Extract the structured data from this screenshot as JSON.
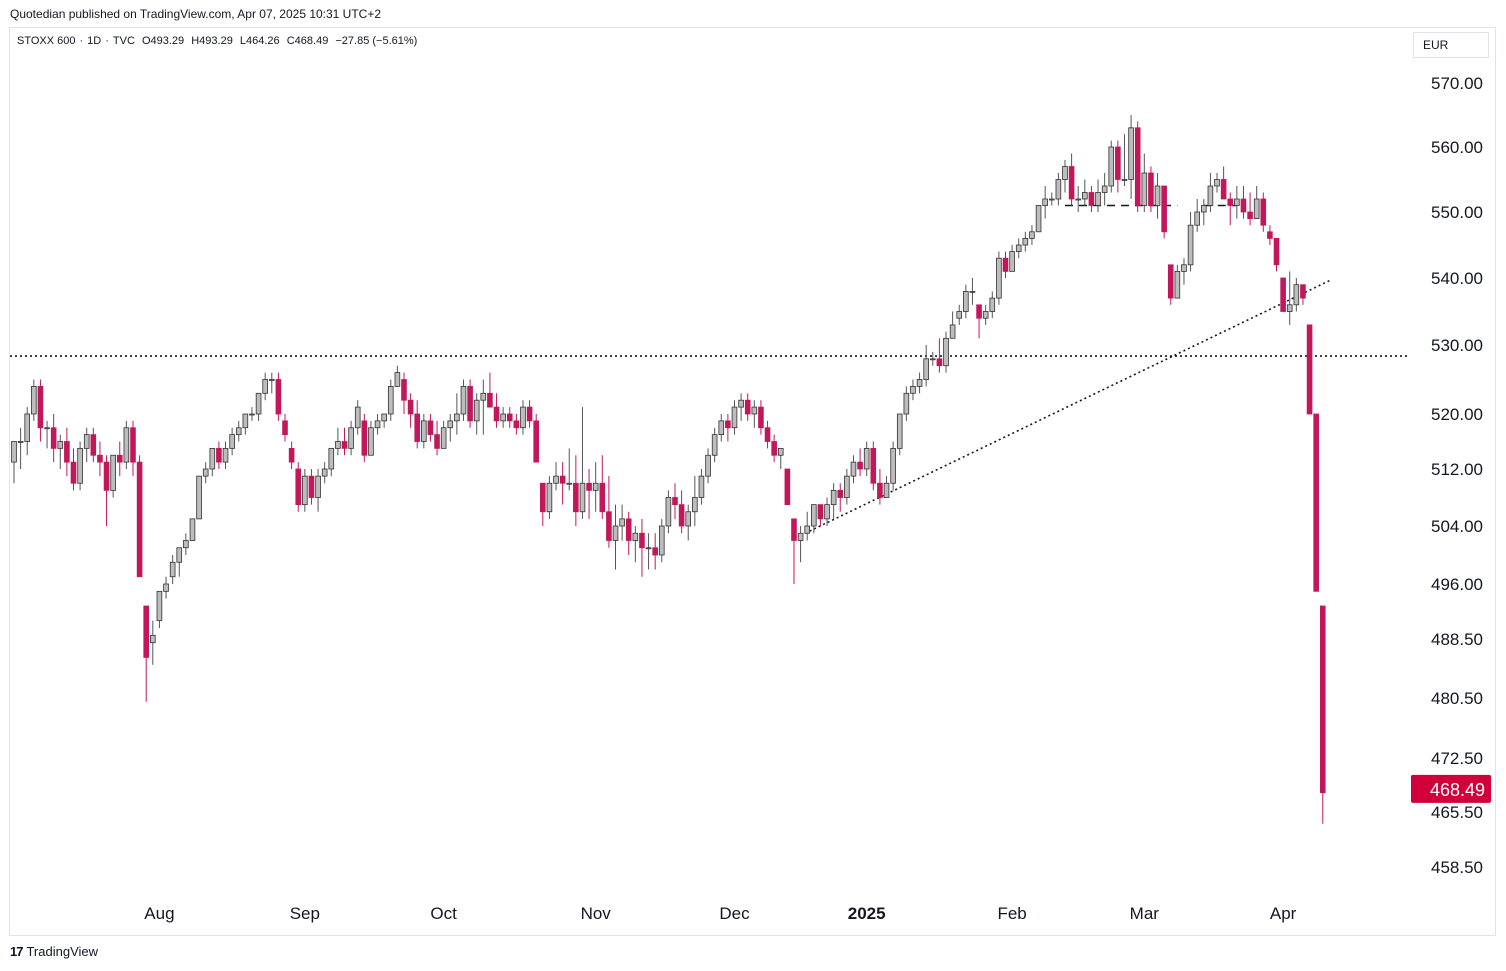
{
  "header": {
    "publisher_text": "Quotedian published on TradingView.com, Apr 07, 2025 10:31 UTC+2"
  },
  "symbol": {
    "name": "STOXX 600",
    "interval": "1D",
    "source": "TVC",
    "open": "O493.29",
    "high": "H493.29",
    "low": "L464.26",
    "close": "C468.49",
    "change": "−27.85 (−5.61%)"
  },
  "currency": "EUR",
  "footer": {
    "brand": "TradingView",
    "logo_glyph": "17"
  },
  "colors": {
    "up": "#9e9e9e",
    "down": "#c2185b",
    "wick": "#c2185b",
    "last_price_bg": "#d1003a"
  },
  "chart_data": {
    "type": "candlestick",
    "last_price": "468.49",
    "y_ticks": [
      "570.00",
      "560.00",
      "550.00",
      "540.00",
      "530.00",
      "520.00",
      "512.00",
      "504.00",
      "496.00",
      "488.50",
      "480.50",
      "472.50",
      "465.50",
      "458.50"
    ],
    "x_ticks": [
      {
        "label": "Aug",
        "bar": 22,
        "bold": false
      },
      {
        "label": "Sep",
        "bar": 44,
        "bold": false
      },
      {
        "label": "Oct",
        "bar": 65,
        "bold": false
      },
      {
        "label": "Nov",
        "bar": 88,
        "bold": false
      },
      {
        "label": "Dec",
        "bar": 109,
        "bold": false
      },
      {
        "label": "2025",
        "bar": 129,
        "bold": true
      },
      {
        "label": "Feb",
        "bar": 151,
        "bold": false
      },
      {
        "label": "Mar",
        "bar": 171,
        "bold": false
      },
      {
        "label": "Apr",
        "bar": 192,
        "bold": false
      }
    ],
    "candles": [
      [
        513,
        516,
        510,
        516
      ],
      [
        516,
        518,
        512,
        516
      ],
      [
        516,
        521,
        514,
        520
      ],
      [
        520,
        525,
        519,
        524
      ],
      [
        524,
        525,
        516,
        518
      ],
      [
        518,
        519,
        515,
        518
      ],
      [
        518,
        520,
        513,
        515
      ],
      [
        515,
        517,
        512,
        516
      ],
      [
        516,
        518,
        511,
        513
      ],
      [
        513,
        515,
        509,
        510
      ],
      [
        510,
        516,
        509,
        515
      ],
      [
        515,
        518,
        513,
        517
      ],
      [
        517,
        518,
        513,
        514
      ],
      [
        514,
        516,
        511,
        513
      ],
      [
        513,
        514,
        504,
        509
      ],
      [
        509,
        514,
        508,
        514
      ],
      [
        514,
        516,
        511,
        513
      ],
      [
        513,
        519,
        512,
        518
      ],
      [
        518,
        519,
        511,
        513
      ],
      [
        513,
        514,
        497,
        497
      ],
      [
        493,
        493,
        480,
        486
      ],
      [
        488,
        491,
        485,
        489
      ],
      [
        491,
        495,
        490,
        495
      ],
      [
        495,
        497,
        494,
        496
      ],
      [
        497,
        500,
        496,
        499
      ],
      [
        499,
        501,
        497,
        501
      ],
      [
        501,
        503,
        500,
        502
      ],
      [
        502,
        505,
        502,
        505
      ],
      [
        505,
        511,
        505,
        511
      ],
      [
        511,
        513,
        510,
        512
      ],
      [
        512,
        515,
        511,
        515
      ],
      [
        515,
        516,
        512,
        513
      ],
      [
        513,
        516,
        512,
        515
      ],
      [
        515,
        518,
        514,
        517
      ],
      [
        517,
        519,
        516,
        518
      ],
      [
        518,
        520,
        517,
        520
      ],
      [
        520,
        521,
        519,
        520
      ],
      [
        520,
        523,
        519,
        523
      ],
      [
        523,
        526,
        522,
        525
      ],
      [
        525,
        526,
        523,
        525
      ],
      [
        525,
        526,
        519,
        520
      ],
      [
        519,
        520,
        516,
        517
      ],
      [
        515,
        516,
        512,
        513
      ],
      [
        512,
        513,
        506,
        507
      ],
      [
        507,
        512,
        506,
        511
      ],
      [
        511,
        512,
        507,
        508
      ],
      [
        508,
        512,
        506,
        511
      ],
      [
        511,
        513,
        510,
        512
      ],
      [
        512,
        515,
        511,
        515
      ],
      [
        515,
        518,
        514,
        516
      ],
      [
        516,
        518,
        514,
        515
      ],
      [
        515,
        519,
        514,
        518
      ],
      [
        518,
        522,
        517,
        521
      ],
      [
        519,
        520,
        513,
        514
      ],
      [
        514,
        519,
        514,
        518
      ],
      [
        518,
        520,
        517,
        519
      ],
      [
        519,
        520,
        518,
        520
      ],
      [
        520,
        525,
        519,
        524
      ],
      [
        524,
        527,
        524,
        526
      ],
      [
        525,
        526,
        520,
        522
      ],
      [
        522,
        523,
        518,
        520
      ],
      [
        520,
        522,
        515,
        516
      ],
      [
        516,
        520,
        515,
        519
      ],
      [
        519,
        520,
        516,
        517
      ],
      [
        517,
        519,
        514,
        515
      ],
      [
        515,
        519,
        515,
        518
      ],
      [
        518,
        520,
        516,
        519
      ],
      [
        519,
        523,
        517,
        520
      ],
      [
        520,
        525,
        519,
        524
      ],
      [
        524,
        525,
        518,
        519
      ],
      [
        519,
        523,
        517,
        522
      ],
      [
        522,
        525,
        517,
        523
      ],
      [
        523,
        526,
        521,
        521
      ],
      [
        521,
        523,
        518,
        519
      ],
      [
        519,
        521,
        518,
        520
      ],
      [
        520,
        521,
        518,
        519
      ],
      [
        519,
        520,
        517,
        518
      ],
      [
        518,
        522,
        517,
        521
      ],
      [
        521,
        522,
        518,
        519
      ],
      [
        519,
        520,
        513,
        513
      ],
      [
        510,
        510,
        504,
        506
      ],
      [
        506,
        511,
        505,
        510
      ],
      [
        510,
        513,
        509,
        511
      ],
      [
        511,
        513,
        507,
        510
      ],
      [
        510,
        515,
        509,
        510
      ],
      [
        510,
        514,
        504,
        506
      ],
      [
        506,
        521,
        505,
        510
      ],
      [
        510,
        512,
        505,
        509
      ],
      [
        509,
        513,
        506,
        510
      ],
      [
        510,
        514,
        505,
        506
      ],
      [
        506,
        511,
        501,
        502
      ],
      [
        502,
        507,
        498,
        504
      ],
      [
        504,
        507,
        502,
        505
      ],
      [
        505,
        506,
        500,
        502
      ],
      [
        502,
        504,
        499,
        503
      ],
      [
        503,
        505,
        497,
        501
      ],
      [
        501,
        503,
        498,
        501
      ],
      [
        501,
        503,
        498,
        500
      ],
      [
        500,
        505,
        499,
        504
      ],
      [
        504,
        509,
        503,
        508
      ],
      [
        508,
        510,
        505,
        507
      ],
      [
        507,
        509,
        503,
        504
      ],
      [
        504,
        507,
        502,
        506
      ],
      [
        506,
        511,
        504,
        508
      ],
      [
        508,
        512,
        507,
        511
      ],
      [
        511,
        515,
        510,
        514
      ],
      [
        514,
        518,
        513,
        517
      ],
      [
        517,
        520,
        516,
        519
      ],
      [
        519,
        520,
        516,
        518
      ],
      [
        518,
        522,
        517,
        521
      ],
      [
        521,
        523,
        519,
        522
      ],
      [
        522,
        523,
        519,
        520
      ],
      [
        520,
        522,
        518,
        521
      ],
      [
        521,
        522,
        517,
        518
      ],
      [
        518,
        519,
        515,
        516
      ],
      [
        516,
        517,
        513,
        514
      ],
      [
        514,
        515,
        512,
        515
      ],
      [
        512,
        512,
        507,
        507
      ],
      [
        505,
        505,
        496,
        502
      ],
      [
        502,
        504,
        499,
        503
      ],
      [
        503,
        506,
        502,
        504
      ],
      [
        504,
        507,
        503,
        507
      ],
      [
        507,
        507,
        504,
        505
      ],
      [
        505,
        508,
        504,
        507
      ],
      [
        507,
        510,
        505,
        509
      ],
      [
        509,
        510,
        506,
        508
      ],
      [
        508,
        512,
        507,
        511
      ],
      [
        511,
        514,
        510,
        513
      ],
      [
        513,
        515,
        511,
        512
      ],
      [
        512,
        516,
        511,
        515
      ],
      [
        515,
        516,
        509,
        510
      ],
      [
        510,
        512,
        507,
        508
      ],
      [
        508,
        511,
        508,
        510
      ],
      [
        510,
        516,
        509,
        515
      ],
      [
        515,
        520,
        514,
        520
      ],
      [
        520,
        524,
        519,
        523
      ],
      [
        523,
        525,
        522,
        524
      ],
      [
        524,
        526,
        523,
        525
      ],
      [
        525,
        530,
        524,
        528
      ],
      [
        528,
        529,
        527,
        528
      ],
      [
        528,
        531,
        526,
        527
      ],
      [
        527,
        532,
        526,
        531
      ],
      [
        531,
        535,
        531,
        533
      ],
      [
        534,
        536,
        533,
        535
      ],
      [
        535,
        539,
        534,
        538
      ],
      [
        538,
        540,
        536,
        538
      ],
      [
        536,
        536,
        531,
        534
      ],
      [
        534,
        536,
        533,
        535
      ],
      [
        535,
        538,
        534,
        537
      ],
      [
        537,
        544,
        536,
        543
      ],
      [
        543,
        544,
        540,
        541
      ],
      [
        541,
        545,
        541,
        544
      ],
      [
        544,
        546,
        543,
        545
      ],
      [
        545,
        547,
        544,
        546
      ],
      [
        546,
        548,
        545,
        547
      ],
      [
        547,
        551,
        547,
        551
      ],
      [
        551,
        554,
        549,
        552
      ],
      [
        552,
        553,
        551,
        552
      ],
      [
        552,
        556,
        551,
        555
      ],
      [
        555,
        558,
        553,
        557
      ],
      [
        557,
        559,
        551,
        552
      ],
      [
        552,
        554,
        550,
        552
      ],
      [
        552,
        555,
        551,
        553
      ],
      [
        553,
        554,
        550,
        551
      ],
      [
        551,
        555,
        550,
        553
      ],
      [
        553,
        556,
        551,
        554
      ],
      [
        554,
        561,
        553,
        560
      ],
      [
        560,
        561,
        553,
        555
      ],
      [
        555,
        562,
        554,
        555
      ],
      [
        555,
        565,
        552,
        563
      ],
      [
        563,
        564,
        550,
        551
      ],
      [
        551,
        559,
        550,
        556
      ],
      [
        556,
        557,
        550,
        551
      ],
      [
        551,
        556,
        549,
        554
      ],
      [
        554,
        554,
        546,
        547
      ],
      [
        542,
        542,
        536,
        537
      ],
      [
        537,
        542,
        537,
        541
      ],
      [
        541,
        543,
        539,
        542
      ],
      [
        542,
        550,
        541,
        548
      ],
      [
        548,
        552,
        547,
        550
      ],
      [
        550,
        552,
        548,
        551
      ],
      [
        551,
        556,
        550,
        554
      ],
      [
        554,
        556,
        553,
        555
      ],
      [
        555,
        557,
        552,
        552
      ],
      [
        552,
        553,
        548,
        551
      ],
      [
        551,
        554,
        549,
        552
      ],
      [
        552,
        554,
        549,
        550
      ],
      [
        550,
        553,
        548,
        549
      ],
      [
        549,
        554,
        549,
        552
      ],
      [
        552,
        553,
        547,
        548
      ],
      [
        547,
        548,
        545,
        546
      ],
      [
        546,
        546,
        541,
        542
      ],
      [
        540,
        540,
        536,
        535
      ],
      [
        535,
        541,
        533,
        536
      ],
      [
        536,
        540,
        535,
        539
      ],
      [
        539,
        539,
        536,
        537
      ],
      [
        533,
        533,
        520,
        520
      ],
      [
        520,
        520,
        495,
        495
      ],
      [
        493,
        493,
        464,
        468
      ]
    ],
    "reference_lines": [
      {
        "type": "horizontal",
        "style": "dotted",
        "value": 528.4
      },
      {
        "type": "segment",
        "style": "dashed",
        "from_bar": 159,
        "to_bar": 176,
        "value": 551
      },
      {
        "type": "segment",
        "style": "dashed",
        "from_bar": 180,
        "to_bar": 185,
        "value": 551
      },
      {
        "type": "trend",
        "style": "dotted",
        "from_bar": 119,
        "from_value": 502.7,
        "to_bar": 199,
        "to_value": 539.6
      }
    ]
  }
}
